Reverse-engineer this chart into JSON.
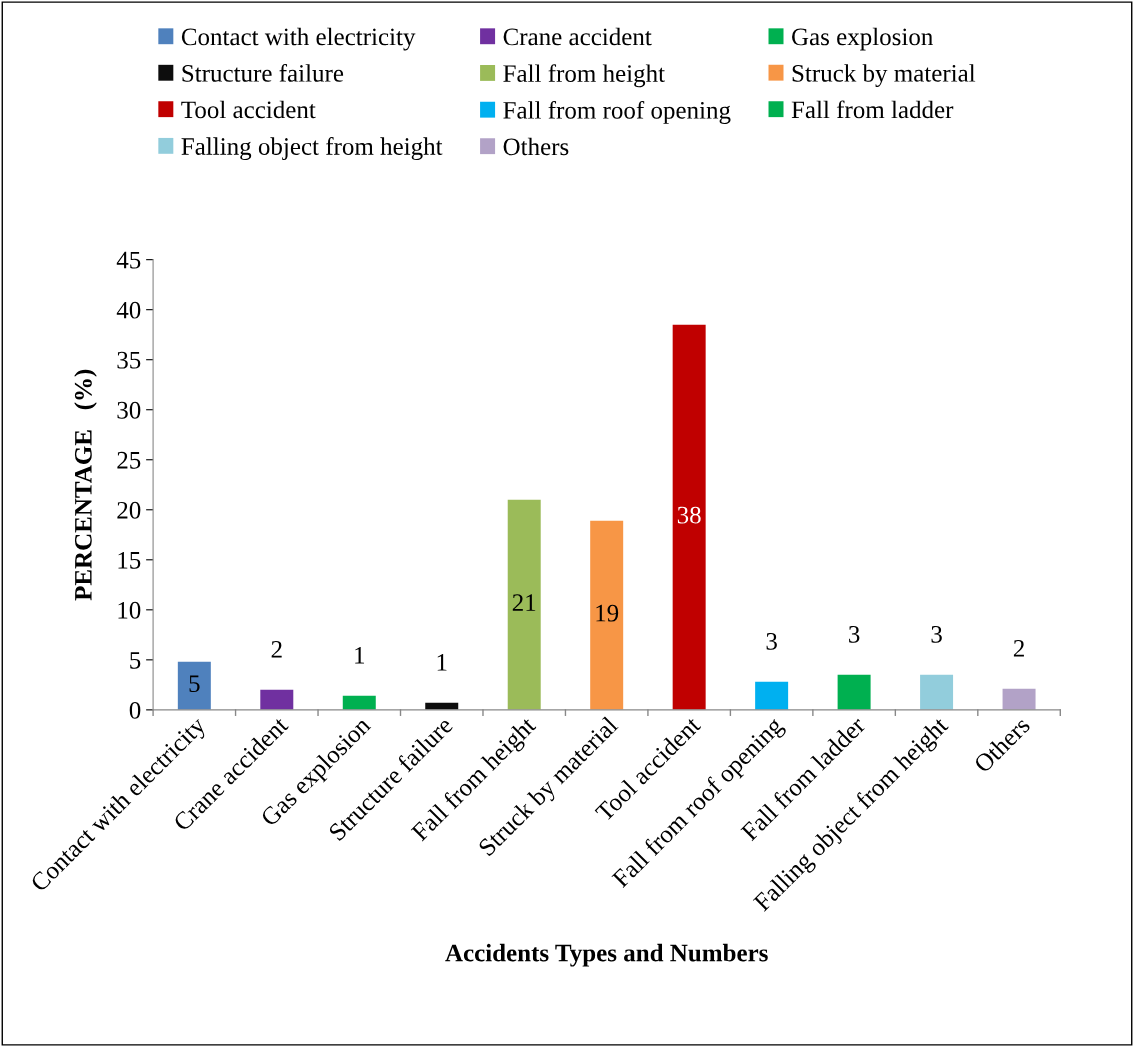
{
  "chart_data": {
    "type": "bar",
    "xlabel": "Accidents Types and Numbers",
    "ylabel": "PERCENTAGE   (%)",
    "categories": [
      "Contact with electricity",
      "Crane accident",
      "Gas explosion",
      "Structure failure",
      "Fall from height",
      "Struck by material",
      "Tool accident",
      "Fall from roof opening",
      "Fall from ladder",
      "Falling object from height",
      "Others"
    ],
    "series": [
      {
        "name": "Contact with electricity",
        "color": "#4f81bd",
        "values": [
          4.8,
          null,
          null,
          null,
          null,
          null,
          null,
          null,
          null,
          null,
          null
        ],
        "value_labels": [
          "5",
          null,
          null,
          null,
          null,
          null,
          null,
          null,
          null,
          null,
          null
        ]
      },
      {
        "name": "Crane accident",
        "color": "#7030a0",
        "values": [
          null,
          2.0,
          null,
          null,
          null,
          null,
          null,
          null,
          null,
          null,
          null
        ],
        "value_labels": [
          null,
          "2",
          null,
          null,
          null,
          null,
          null,
          null,
          null,
          null,
          null
        ]
      },
      {
        "name": "Gas explosion",
        "color": "#00b050",
        "values": [
          null,
          null,
          1.4,
          null,
          null,
          null,
          null,
          null,
          null,
          null,
          null
        ],
        "value_labels": [
          null,
          null,
          "1",
          null,
          null,
          null,
          null,
          null,
          null,
          null,
          null
        ]
      },
      {
        "name": "Structure failure",
        "color": "#0d0d0d",
        "values": [
          null,
          null,
          null,
          0.7,
          null,
          null,
          null,
          null,
          null,
          null,
          null
        ],
        "value_labels": [
          null,
          null,
          null,
          "1",
          null,
          null,
          null,
          null,
          null,
          null,
          null
        ]
      },
      {
        "name": "Fall from height",
        "color": "#9bbb59",
        "values": [
          null,
          null,
          null,
          null,
          21.0,
          null,
          null,
          null,
          null,
          null,
          null
        ],
        "value_labels": [
          null,
          null,
          null,
          null,
          "21",
          null,
          null,
          null,
          null,
          null,
          null
        ]
      },
      {
        "name": "Struck by material",
        "color": "#f79646",
        "values": [
          null,
          null,
          null,
          null,
          null,
          18.9,
          null,
          null,
          null,
          null,
          null
        ],
        "value_labels": [
          null,
          null,
          null,
          null,
          null,
          "19",
          null,
          null,
          null,
          null,
          null
        ]
      },
      {
        "name": "Tool accident",
        "color": "#c00000",
        "values": [
          null,
          null,
          null,
          null,
          null,
          null,
          38.5,
          null,
          null,
          null,
          null
        ],
        "value_labels": [
          null,
          null,
          null,
          null,
          null,
          null,
          "38",
          null,
          null,
          null,
          null
        ]
      },
      {
        "name": "Fall from roof opening",
        "color": "#00b0f0",
        "values": [
          null,
          null,
          null,
          null,
          null,
          null,
          null,
          2.8,
          null,
          null,
          null
        ],
        "value_labels": [
          null,
          null,
          null,
          null,
          null,
          null,
          null,
          "3",
          null,
          null,
          null
        ]
      },
      {
        "name": "Fall from ladder",
        "color": "#00b050",
        "values": [
          null,
          null,
          null,
          null,
          null,
          null,
          null,
          null,
          3.5,
          null,
          null
        ],
        "value_labels": [
          null,
          null,
          null,
          null,
          null,
          null,
          null,
          null,
          "3",
          null,
          null
        ]
      },
      {
        "name": "Falling object from height",
        "color": "#92cddc",
        "values": [
          null,
          null,
          null,
          null,
          null,
          null,
          null,
          null,
          null,
          3.5,
          null
        ],
        "value_labels": [
          null,
          null,
          null,
          null,
          null,
          null,
          null,
          null,
          null,
          "3",
          null
        ]
      },
      {
        "name": "Others",
        "color": "#b2a2c7",
        "values": [
          null,
          null,
          null,
          null,
          null,
          null,
          null,
          null,
          null,
          null,
          2.1
        ],
        "value_labels": [
          null,
          null,
          null,
          null,
          null,
          null,
          null,
          null,
          null,
          null,
          "2"
        ]
      }
    ],
    "ylim": [
      0,
      45
    ],
    "yticks": [
      0,
      5,
      10,
      15,
      20,
      25,
      30,
      35,
      40,
      45
    ],
    "grid": false,
    "legend": "top"
  }
}
